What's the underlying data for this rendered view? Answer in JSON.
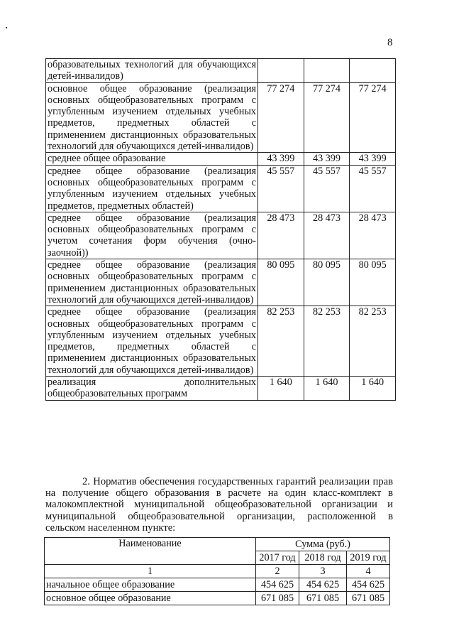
{
  "page_number": "8",
  "table1": {
    "rows": [
      {
        "name": "образовательных технологий для обучающихся детей-инвалидов)",
        "v2017": "",
        "v2018": "",
        "v2019": ""
      },
      {
        "name": "основное общее образование (реализация основных общеобразовательных программ с углубленным изучением отдельных учебных предметов, предметных областей с применением дистанционных образовательных технологий для обучающихся детей-инвалидов)",
        "v2017": "77 274",
        "v2018": "77 274",
        "v2019": "77 274"
      },
      {
        "name": "среднее общее образование",
        "v2017": "43 399",
        "v2018": "43 399",
        "v2019": "43 399"
      },
      {
        "name": "среднее общее образование (реализация основных общеобразовательных программ с углубленным изучением отдельных учебных предметов, предметных областей)",
        "v2017": "45 557",
        "v2018": "45 557",
        "v2019": "45 557"
      },
      {
        "name": "среднее общее образование (реализация основных общеобразовательных программ с учетом сочетания форм обучения (очно-заочной))",
        "v2017": "28 473",
        "v2018": "28 473",
        "v2019": "28 473"
      },
      {
        "name": "среднее общее образование (реализация основных общеобразовательных программ с применением дистанционных образовательных технологий для обучающихся детей-инвалидов)",
        "v2017": "80 095",
        "v2018": "80 095",
        "v2019": "80 095"
      },
      {
        "name": "среднее общее образование (реализация основных общеобразовательных программ с углубленным изучением отдельных учебных предметов, предметных областей с применением дистанционных образовательных технологий для обучающихся детей-инвалидов)",
        "v2017": "82 253",
        "v2018": "82 253",
        "v2019": "82 253"
      },
      {
        "name": "реализация дополнительных общеобразовательных программ",
        "v2017": "1 640",
        "v2018": "1 640",
        "v2019": "1 640"
      }
    ]
  },
  "paragraph": "2. Норматив обеспечения государственных гарантий реализации прав на получение общего образования в расчете на один класс-комплект в малокомплектной муниципальной общеобразовательной организации и муниципальной общеобразовательной организации, расположенной в сельском населенном пункте:",
  "table2": {
    "header_name": "Наименование",
    "header_sum": "Сумма (руб.)",
    "years": [
      "2017 год",
      "2018 год",
      "2019 год"
    ],
    "col_numbers": [
      "1",
      "2",
      "3",
      "4"
    ],
    "rows": [
      {
        "name": "начальное общее образование",
        "v2017": "454 625",
        "v2018": "454 625",
        "v2019": "454 625"
      },
      {
        "name": "основное общее образование",
        "v2017": "671 085",
        "v2018": "671 085",
        "v2019": "671 085"
      }
    ]
  }
}
